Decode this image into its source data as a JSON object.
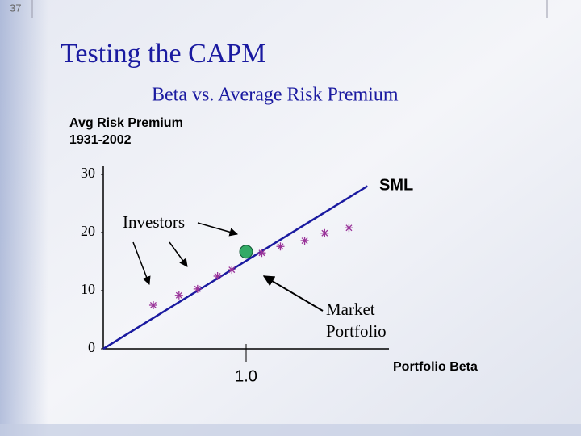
{
  "slide_number": "37",
  "chart_data": {
    "type": "scatter",
    "title": "Testing the CAPM",
    "subtitle": "Beta vs. Average Risk Premium",
    "y_label": [
      "Avg Risk Premium",
      "1931-2002"
    ],
    "x_label": "Portfolio Beta",
    "annotations": {
      "line": "SML",
      "points": "Investors",
      "market": [
        "Market",
        "Portfolio"
      ]
    },
    "xlim": [
      0,
      2.0
    ],
    "ylim": [
      0,
      30
    ],
    "xticks": [
      {
        "value": 1.0,
        "label": "1.0"
      }
    ],
    "yticks": [
      0,
      10,
      20,
      30
    ],
    "x": [
      0.35,
      0.53,
      0.66,
      0.8,
      0.9,
      1.11,
      1.24,
      1.41,
      1.55,
      1.72
    ],
    "values": [
      7.5,
      9.2,
      10.3,
      12.5,
      13.6,
      16.5,
      17.6,
      18.6,
      19.9,
      20.8
    ],
    "color": "#993399",
    "market_point": {
      "x": 1.0,
      "y": 16.7,
      "color": "#33aa66"
    },
    "sml": {
      "x": [
        0,
        1.85
      ],
      "values": [
        0,
        28
      ],
      "color": "#1a1aa0"
    }
  }
}
